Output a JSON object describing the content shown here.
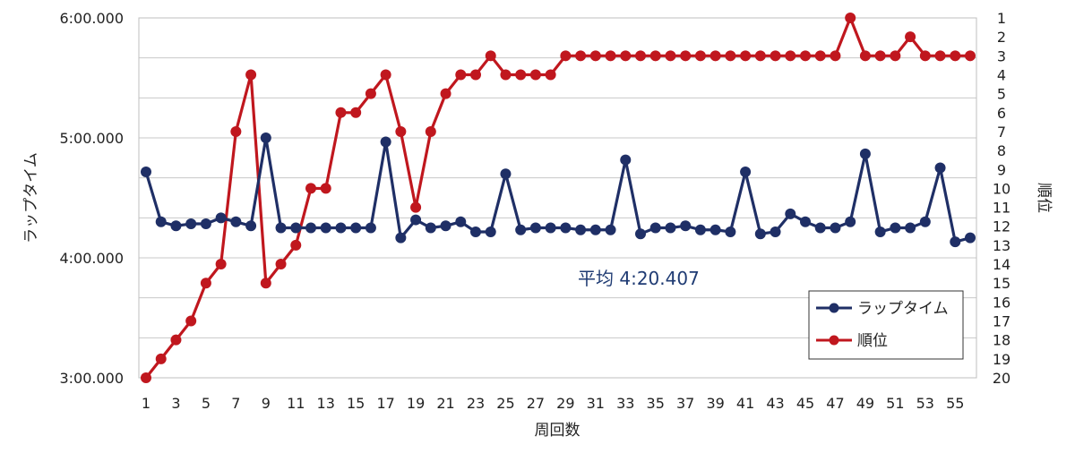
{
  "chart_data": {
    "type": "line",
    "xlabel": "周回数",
    "ylabel_left": "ラップタイム",
    "ylabel_right": "順位",
    "x": [
      1,
      2,
      3,
      4,
      5,
      6,
      7,
      8,
      9,
      10,
      11,
      12,
      13,
      14,
      15,
      16,
      17,
      18,
      19,
      20,
      21,
      22,
      23,
      24,
      25,
      26,
      27,
      28,
      29,
      30,
      31,
      32,
      33,
      34,
      35,
      36,
      37,
      38,
      39,
      40,
      41,
      42,
      43,
      44,
      45,
      46,
      47,
      48,
      49,
      50,
      51,
      52,
      53,
      54,
      55,
      56
    ],
    "x_tick_labels": [
      "1",
      "3",
      "5",
      "7",
      "9",
      "11",
      "13",
      "15",
      "17",
      "19",
      "21",
      "23",
      "25",
      "27",
      "29",
      "31",
      "33",
      "35",
      "37",
      "39",
      "41",
      "43",
      "45",
      "47",
      "49",
      "51",
      "53",
      "55"
    ],
    "y_left_ticks": [
      "3:00.000",
      "4:00.000",
      "5:00.000",
      "6:00.000"
    ],
    "y_left_range_seconds": [
      180,
      360
    ],
    "y_right_ticks": [
      "1",
      "2",
      "3",
      "4",
      "5",
      "6",
      "7",
      "8",
      "9",
      "10",
      "11",
      "12",
      "13",
      "14",
      "15",
      "16",
      "17",
      "18",
      "19",
      "20"
    ],
    "y_right_range": [
      1,
      20
    ],
    "series": [
      {
        "name": "ラップタイム",
        "axis": "left",
        "color": "#1f2f66",
        "values_seconds": [
          283,
          258,
          256,
          257,
          257,
          260,
          258,
          256,
          300,
          255,
          255,
          255,
          255,
          255,
          255,
          255,
          298,
          250,
          259,
          255,
          256,
          258,
          253,
          253,
          282,
          254,
          255,
          255,
          255,
          254,
          254,
          254,
          289,
          252,
          255,
          255,
          256,
          254,
          254,
          253,
          283,
          252,
          253,
          262,
          258,
          255,
          255,
          258,
          292,
          253,
          255,
          255,
          258,
          285,
          248,
          250
        ]
      },
      {
        "name": "順位",
        "axis": "right",
        "color": "#c0171e",
        "values": [
          20,
          19,
          18,
          17,
          15,
          14,
          7,
          4,
          15,
          14,
          13,
          10,
          10,
          6,
          6,
          5,
          4,
          7,
          11,
          7,
          5,
          4,
          4,
          3,
          4,
          4,
          4,
          4,
          3,
          3,
          3,
          3,
          3,
          3,
          3,
          3,
          3,
          3,
          3,
          3,
          3,
          3,
          3,
          3,
          3,
          3,
          3,
          1,
          3,
          3,
          3,
          2,
          3,
          3,
          3,
          3
        ]
      }
    ],
    "annotations": [
      {
        "text": "平均 4:20.407"
      }
    ],
    "legend_position": "bottom-right",
    "grid": true
  }
}
